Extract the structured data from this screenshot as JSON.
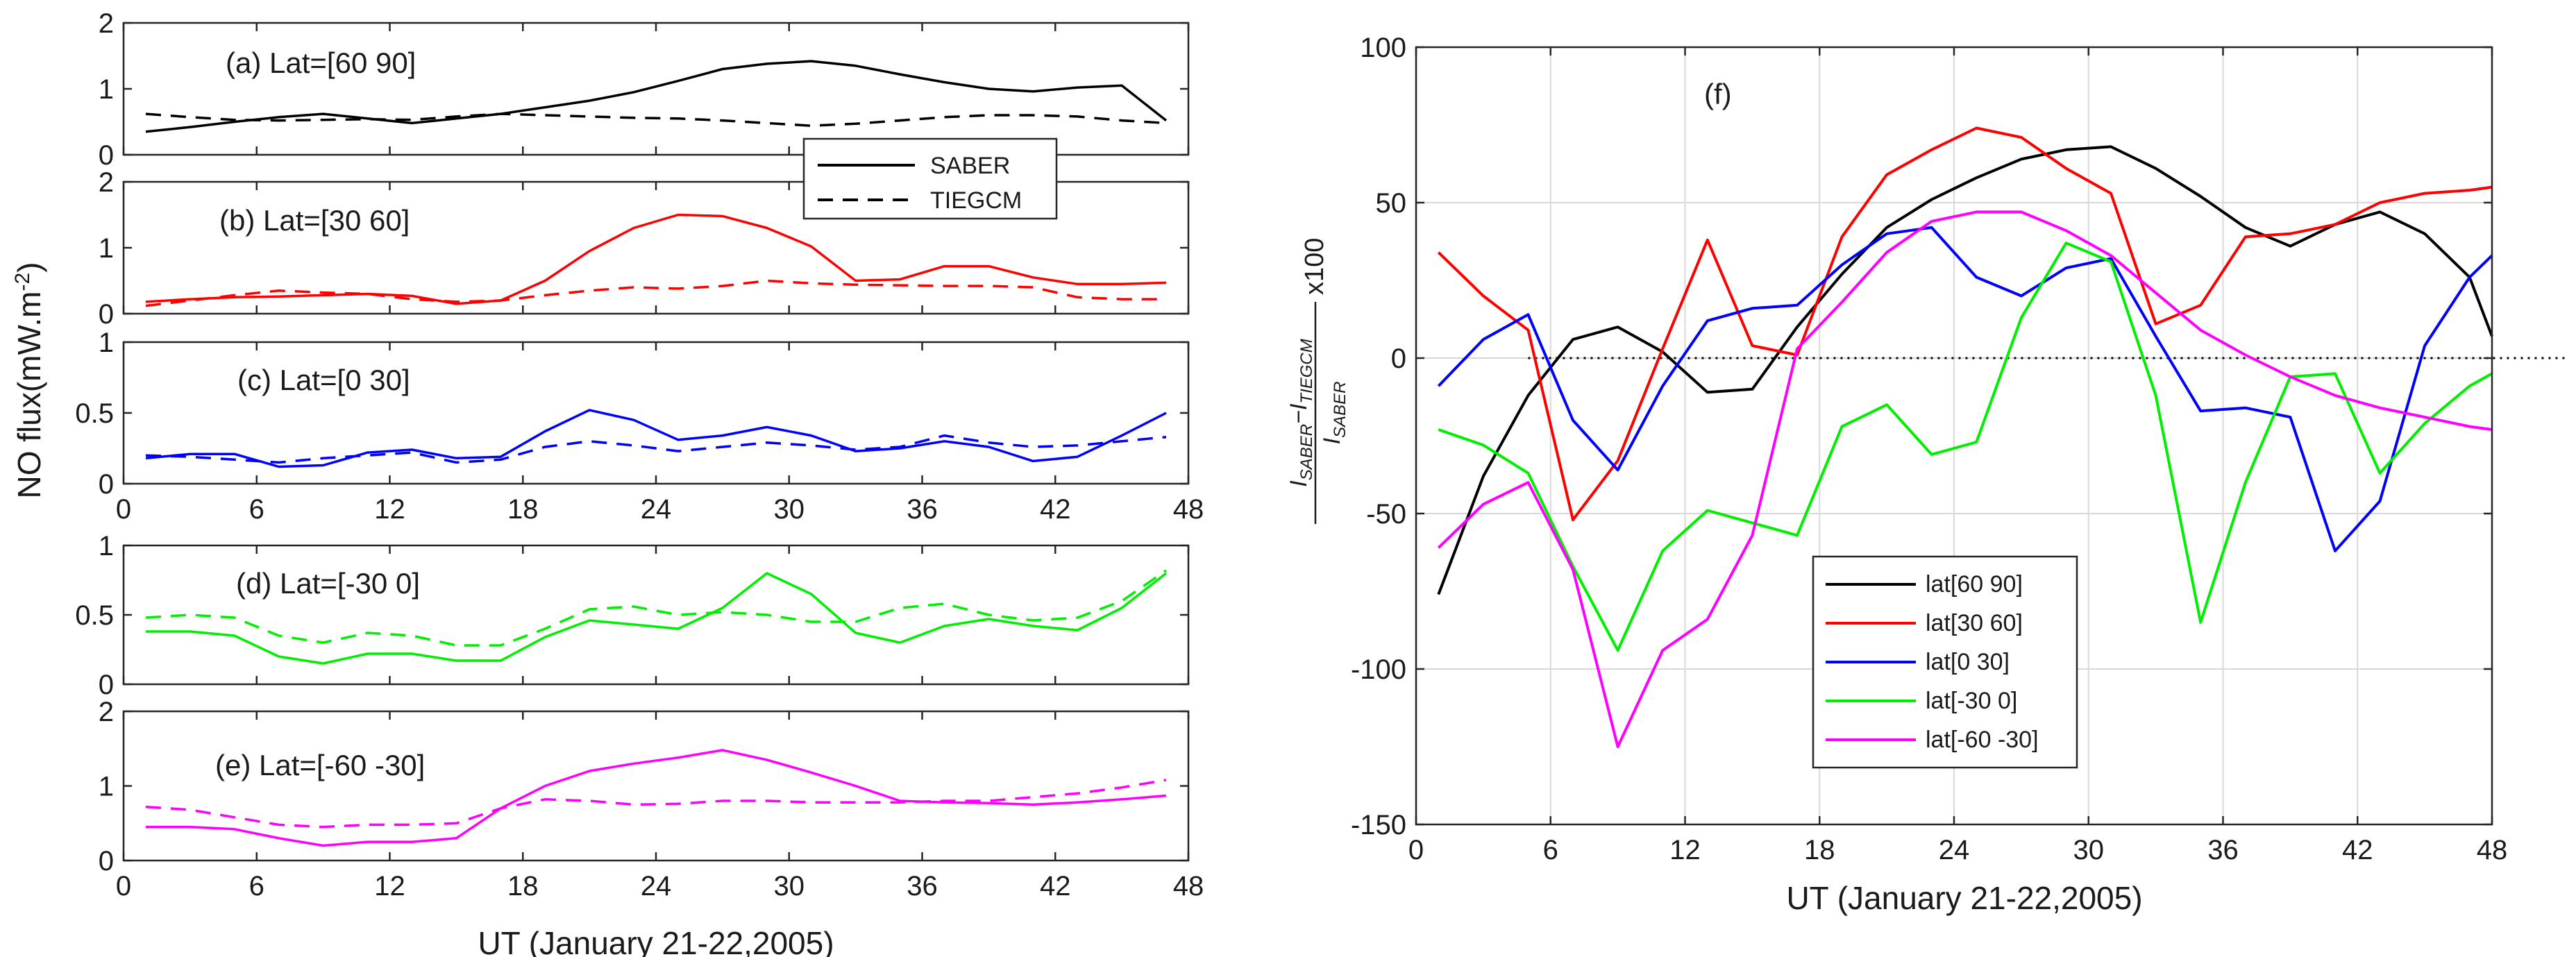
{
  "chart_data": [
    {
      "type": "line",
      "panel": "a",
      "label": "(a) Lat=[60 90]",
      "x": [
        1,
        3,
        5,
        7,
        9,
        11,
        13,
        15,
        17,
        19,
        21,
        23,
        25,
        27,
        29,
        31,
        33,
        35,
        37,
        39,
        41,
        43,
        45,
        47
      ],
      "series": [
        {
          "name": "SABER",
          "style": "solid",
          "color": "#000000",
          "values": [
            0.35,
            0.42,
            0.5,
            0.57,
            0.62,
            0.55,
            0.48,
            0.55,
            0.62,
            0.72,
            0.82,
            0.95,
            1.12,
            1.3,
            1.38,
            1.42,
            1.35,
            1.22,
            1.1,
            1.0,
            0.96,
            1.02,
            1.05,
            0.52
          ]
        },
        {
          "name": "TIEGCM",
          "style": "dashed",
          "color": "#000000",
          "values": [
            0.62,
            0.57,
            0.53,
            0.52,
            0.53,
            0.54,
            0.53,
            0.58,
            0.62,
            0.6,
            0.58,
            0.56,
            0.55,
            0.52,
            0.48,
            0.44,
            0.47,
            0.52,
            0.57,
            0.6,
            0.6,
            0.58,
            0.52,
            0.48
          ]
        }
      ],
      "xlim": [
        0,
        48
      ],
      "ylim": [
        0,
        2
      ],
      "yticks": [
        "0",
        "1",
        "2"
      ]
    },
    {
      "type": "line",
      "panel": "b",
      "label": "(b) Lat=[30 60]",
      "x": [
        1,
        3,
        5,
        7,
        9,
        11,
        13,
        15,
        17,
        19,
        21,
        23,
        25,
        27,
        29,
        31,
        33,
        35,
        37,
        39,
        41,
        43,
        45,
        47
      ],
      "series": [
        {
          "name": "SABER",
          "style": "solid",
          "color": "#ff0000",
          "values": [
            0.18,
            0.22,
            0.25,
            0.26,
            0.28,
            0.3,
            0.27,
            0.15,
            0.2,
            0.5,
            0.95,
            1.3,
            1.5,
            1.48,
            1.3,
            1.02,
            0.5,
            0.52,
            0.72,
            0.72,
            0.55,
            0.45,
            0.45,
            0.47
          ]
        },
        {
          "name": "TIEGCM",
          "style": "dashed",
          "color": "#ff0000",
          "values": [
            0.12,
            0.2,
            0.28,
            0.35,
            0.32,
            0.3,
            0.22,
            0.18,
            0.2,
            0.28,
            0.35,
            0.4,
            0.38,
            0.42,
            0.5,
            0.46,
            0.44,
            0.43,
            0.42,
            0.42,
            0.4,
            0.25,
            0.22,
            0.22
          ]
        }
      ],
      "xlim": [
        0,
        48
      ],
      "ylim": [
        0,
        2
      ],
      "yticks": [
        "0",
        "1",
        "2"
      ]
    },
    {
      "type": "line",
      "panel": "c",
      "label": "(c) Lat=[0 30]",
      "x": [
        1,
        3,
        5,
        7,
        9,
        11,
        13,
        15,
        17,
        19,
        21,
        23,
        25,
        27,
        29,
        31,
        33,
        35,
        37,
        39,
        41,
        43,
        45,
        47
      ],
      "series": [
        {
          "name": "SABER",
          "style": "solid",
          "color": "#0000ff",
          "values": [
            0.18,
            0.21,
            0.21,
            0.12,
            0.13,
            0.22,
            0.24,
            0.18,
            0.19,
            0.37,
            0.52,
            0.45,
            0.31,
            0.34,
            0.4,
            0.34,
            0.23,
            0.25,
            0.3,
            0.26,
            0.16,
            0.19,
            0.34,
            0.5
          ]
        },
        {
          "name": "TIEGCM",
          "style": "dashed",
          "color": "#0000ff",
          "values": [
            0.2,
            0.19,
            0.17,
            0.15,
            0.18,
            0.2,
            0.22,
            0.15,
            0.17,
            0.26,
            0.3,
            0.27,
            0.23,
            0.26,
            0.29,
            0.27,
            0.24,
            0.26,
            0.34,
            0.29,
            0.26,
            0.27,
            0.3,
            0.33
          ]
        }
      ],
      "xlim": [
        0,
        48
      ],
      "ylim": [
        0,
        1
      ],
      "yticks": [
        "0",
        "0.5",
        "1"
      ]
    },
    {
      "type": "line",
      "panel": "d",
      "label": "(d) Lat=[-30 0]",
      "x": [
        1,
        3,
        5,
        7,
        9,
        11,
        13,
        15,
        17,
        19,
        21,
        23,
        25,
        27,
        29,
        31,
        33,
        35,
        37,
        39,
        41,
        43,
        45,
        47
      ],
      "series": [
        {
          "name": "SABER",
          "style": "solid",
          "color": "#00ee00",
          "values": [
            0.38,
            0.38,
            0.35,
            0.2,
            0.15,
            0.22,
            0.22,
            0.17,
            0.17,
            0.34,
            0.46,
            0.43,
            0.4,
            0.55,
            0.8,
            0.65,
            0.37,
            0.3,
            0.42,
            0.47,
            0.42,
            0.39,
            0.55,
            0.8
          ]
        },
        {
          "name": "TIEGCM",
          "style": "dashed",
          "color": "#00ee00",
          "values": [
            0.48,
            0.5,
            0.48,
            0.35,
            0.3,
            0.37,
            0.35,
            0.28,
            0.28,
            0.4,
            0.54,
            0.56,
            0.5,
            0.52,
            0.5,
            0.45,
            0.45,
            0.55,
            0.58,
            0.5,
            0.46,
            0.48,
            0.6,
            0.82
          ]
        }
      ],
      "xlim": [
        0,
        48
      ],
      "ylim": [
        0,
        1
      ],
      "yticks": [
        "0",
        "0.5",
        "1"
      ]
    },
    {
      "type": "line",
      "panel": "e",
      "label": "(e) Lat=[-60 -30]",
      "x": [
        1,
        3,
        5,
        7,
        9,
        11,
        13,
        15,
        17,
        19,
        21,
        23,
        25,
        27,
        29,
        31,
        33,
        35,
        37,
        39,
        41,
        43,
        45,
        47
      ],
      "series": [
        {
          "name": "SABER",
          "style": "solid",
          "color": "#ff00ff",
          "values": [
            0.45,
            0.45,
            0.42,
            0.3,
            0.2,
            0.25,
            0.25,
            0.3,
            0.7,
            1.0,
            1.2,
            1.3,
            1.38,
            1.48,
            1.35,
            1.18,
            1.0,
            0.8,
            0.78,
            0.77,
            0.75,
            0.78,
            0.82,
            0.87
          ]
        },
        {
          "name": "TIEGCM",
          "style": "dashed",
          "color": "#ff00ff",
          "values": [
            0.72,
            0.68,
            0.58,
            0.48,
            0.45,
            0.48,
            0.48,
            0.5,
            0.7,
            0.82,
            0.8,
            0.75,
            0.76,
            0.8,
            0.8,
            0.78,
            0.78,
            0.78,
            0.8,
            0.8,
            0.85,
            0.9,
            0.98,
            1.08
          ]
        }
      ],
      "xlim": [
        0,
        48
      ],
      "ylim": [
        0,
        2
      ],
      "yticks": [
        "0",
        "1",
        "2"
      ]
    },
    {
      "type": "line",
      "panel": "f",
      "label": "(f)",
      "x": [
        1,
        3,
        5,
        7,
        9,
        11,
        13,
        15,
        17,
        19,
        21,
        23,
        25,
        27,
        29,
        31,
        33,
        35,
        37,
        39,
        41,
        43,
        45,
        47,
        48
      ],
      "series": [
        {
          "name": "lat[60 90]",
          "color": "#000000",
          "values": [
            -76,
            -38,
            -12,
            6,
            10,
            2,
            -11,
            -10,
            10,
            27,
            42,
            51,
            58,
            64,
            67,
            68,
            61,
            52,
            42,
            36,
            43,
            47,
            40,
            26,
            7
          ]
        },
        {
          "name": "lat[30 60]",
          "color": "#ff0000",
          "values": [
            34,
            20,
            9,
            -52,
            -33,
            3,
            38,
            4,
            1,
            39,
            59,
            67,
            74,
            71,
            61,
            53,
            11,
            17,
            39,
            40,
            43,
            50,
            53,
            54,
            55
          ]
        },
        {
          "name": "lat[0 30]",
          "color": "#0000ff",
          "values": [
            -9,
            6,
            14,
            -20,
            -36,
            -9,
            12,
            16,
            17,
            30,
            40,
            42,
            26,
            20,
            29,
            32,
            7,
            -17,
            -16,
            -19,
            -62,
            -46,
            4,
            26,
            33
          ]
        },
        {
          "name": "lat[-30 0]",
          "color": "#00ee00",
          "values": [
            -23,
            -28,
            -37,
            -67,
            -94,
            -62,
            -49,
            -53,
            -57,
            -22,
            -15,
            -31,
            -27,
            13,
            37,
            31,
            -12,
            -85,
            -40,
            -6,
            -5,
            -37,
            -21,
            -9,
            -5
          ]
        },
        {
          "name": "lat[-60 -30]",
          "color": "#ff00ff",
          "values": [
            -61,
            -47,
            -40,
            -68,
            -125,
            -94,
            -84,
            -57,
            3,
            18,
            34,
            44,
            47,
            47,
            41,
            33,
            21,
            9,
            1,
            -6,
            -12,
            -16,
            -19,
            -22,
            -23
          ]
        }
      ],
      "reference_line": {
        "y": 0,
        "style": "dotted",
        "x_start": 5
      },
      "xlim": [
        0,
        48
      ],
      "ylim": [
        -150,
        100
      ],
      "xticks": [
        "0",
        "6",
        "12",
        "18",
        "24",
        "30",
        "36",
        "42",
        "48"
      ],
      "yticks": [
        "-150",
        "-100",
        "-50",
        "0",
        "50",
        "100"
      ],
      "grid": true,
      "legend_position": "lower-left"
    }
  ],
  "left_figure": {
    "ylabel_main": "NO flux(mW.m",
    "ylabel_exp": "-2",
    "ylabel_close": ")",
    "xlabel": "UT (January 21-22,2005)",
    "xticks": [
      "0",
      "6",
      "12",
      "18",
      "24",
      "30",
      "36",
      "42",
      "48"
    ],
    "legend": [
      {
        "label": "SABER",
        "style": "solid"
      },
      {
        "label": "TIEGCM",
        "style": "dashed"
      }
    ]
  },
  "right_figure": {
    "xlabel": "UT (January 21-22,2005)",
    "ylabel": {
      "num_a": "I",
      "num_a_sub": "SABER",
      "minus": "−I",
      "num_b_sub": "TIEGCM",
      "den": "I",
      "den_sub": "SABER",
      "factor": "x100"
    }
  }
}
